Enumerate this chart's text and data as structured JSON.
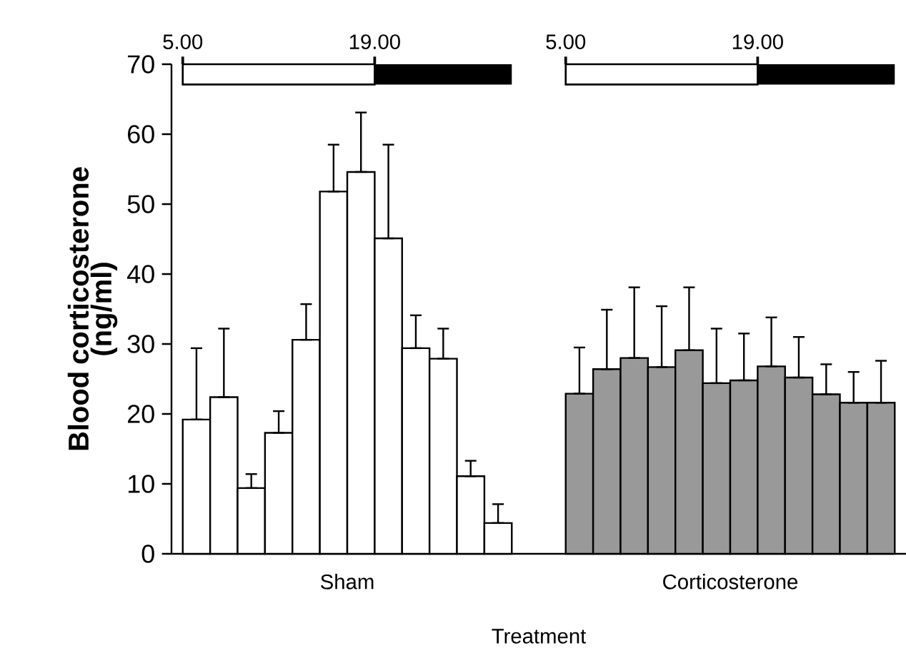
{
  "chart_data": {
    "type": "bar",
    "xlabel": "Treatment",
    "ylabel": "Blood corticosterone (ng/ml)",
    "categories": [
      "Sham",
      "Corticosterone"
    ],
    "ylim": [
      0,
      70
    ],
    "yticks": [
      0,
      10,
      20,
      30,
      40,
      50,
      60,
      70
    ],
    "annotations": [
      "5.00",
      "19.00",
      "5.00",
      "19.00"
    ],
    "series": [
      {
        "colors": [
          "#ffffff",
          "#999999"
        ],
        "values": [
          19.2,
          22.9
        ],
        "errors": [
          [
            19.2,
            29.4
          ],
          [
            22.9,
            29.5
          ]
        ]
      },
      {
        "colors": [
          "#ffffff",
          "#999999"
        ],
        "values": [
          22.4,
          26.4
        ],
        "errors": [
          [
            22.4,
            32.2
          ],
          [
            26.4,
            34.9
          ]
        ]
      },
      {
        "colors": [
          "#ffffff",
          "#999999"
        ],
        "values": [
          9.4,
          28.0
        ],
        "errors": [
          [
            9.4,
            11.4
          ],
          [
            28.0,
            38.1
          ]
        ]
      },
      {
        "colors": [
          "#ffffff",
          "#999999"
        ],
        "values": [
          17.3,
          26.7
        ],
        "errors": [
          [
            17.3,
            20.4
          ],
          [
            26.7,
            35.4
          ]
        ]
      },
      {
        "colors": [
          "#ffffff",
          "#999999"
        ],
        "values": [
          30.6,
          29.1
        ],
        "errors": [
          [
            30.6,
            35.7
          ],
          [
            29.1,
            38.1
          ]
        ]
      },
      {
        "colors": [
          "#ffffff",
          "#999999"
        ],
        "values": [
          51.8,
          24.4
        ],
        "errors": [
          [
            51.8,
            58.5
          ],
          [
            24.4,
            32.2
          ]
        ]
      },
      {
        "colors": [
          "#ffffff",
          "#999999"
        ],
        "values": [
          54.6,
          24.8
        ],
        "errors": [
          [
            54.6,
            63.1
          ],
          [
            24.8,
            31.5
          ]
        ]
      },
      {
        "colors": [
          "#ffffff",
          "#999999"
        ],
        "values": [
          45.1,
          26.8
        ],
        "errors": [
          [
            45.1,
            58.5
          ],
          [
            26.8,
            33.8
          ]
        ]
      },
      {
        "colors": [
          "#ffffff",
          "#999999"
        ],
        "values": [
          29.4,
          25.2
        ],
        "errors": [
          [
            29.4,
            34.1
          ],
          [
            25.2,
            31.0
          ]
        ]
      },
      {
        "colors": [
          "#ffffff",
          "#999999"
        ],
        "values": [
          27.9,
          22.8
        ],
        "errors": [
          [
            27.9,
            32.2
          ],
          [
            22.8,
            27.1
          ]
        ]
      },
      {
        "colors": [
          "#ffffff",
          "#999999"
        ],
        "values": [
          11.1,
          21.6
        ],
        "errors": [
          [
            11.1,
            13.3
          ],
          [
            21.6,
            26.0
          ]
        ]
      },
      {
        "colors": [
          "#ffffff",
          "#999999"
        ],
        "values": [
          4.4,
          21.6
        ],
        "errors": [
          [
            4.4,
            7.1
          ],
          [
            21.6,
            27.6
          ]
        ]
      }
    ]
  }
}
